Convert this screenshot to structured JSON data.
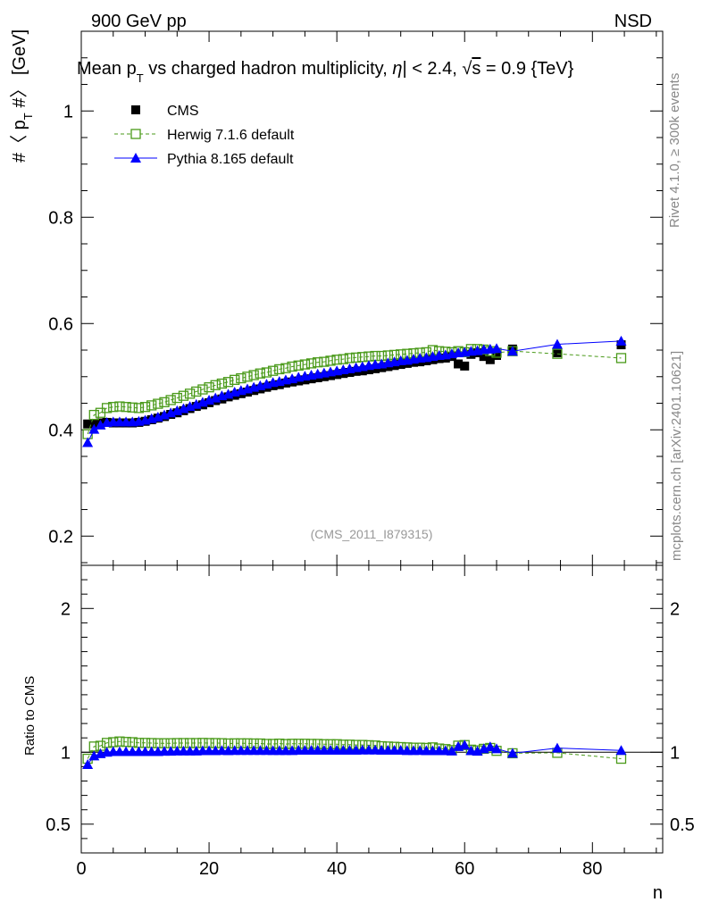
{
  "header": {
    "left": "900 GeV pp",
    "right": "NSD"
  },
  "side_text": {
    "rivet": "Rivet 4.1.0, ≥ 300k events",
    "mcplots": "mcplots.cern.ch [arXiv:2401.10621]"
  },
  "chart_data": [
    {
      "type": "scatter",
      "title": "Mean p_T vs charged hadron multiplicity, |η| < 2.4, √s = 0.9 {TeV}",
      "title_parts": {
        "a": "Mean p",
        "sub": "T",
        "b": " vs charged hadron multiplicity, ",
        "eta_bar": "|",
        "c": " < 2.4, ",
        "s": "s",
        "d": " = 0.9 {TeV}"
      },
      "ylabel_parts": {
        "a": "#〈 p",
        "sub": "T",
        "b": " #〉 [GeV]"
      },
      "xlim": [
        0,
        91
      ],
      "ylim": [
        0.145,
        1.15
      ],
      "yticks": [
        0.2,
        0.4,
        0.6,
        0.8,
        1
      ],
      "ytick_labels": [
        "0.2",
        "0.4",
        "0.6",
        "0.8",
        "1"
      ],
      "annotation": "(CMS_2011_I879315)",
      "legend": [
        {
          "name": "CMS",
          "marker": "filled-square",
          "color": "#000000"
        },
        {
          "name": "Herwig 7.1.6 default",
          "marker": "open-square",
          "color": "#4a9a1a",
          "line": "dashed"
        },
        {
          "name": "Pythia 8.165 default",
          "marker": "filled-triangle",
          "color": "#0000ff",
          "line": "solid"
        }
      ],
      "series": [
        {
          "name": "CMS",
          "x": [
            1,
            2,
            3,
            4,
            5,
            6,
            7,
            8,
            9,
            10,
            11,
            12,
            13,
            14,
            15,
            16,
            17,
            18,
            19,
            20,
            21,
            22,
            23,
            24,
            25,
            26,
            27,
            28,
            29,
            30,
            31,
            32,
            33,
            34,
            35,
            36,
            37,
            38,
            39,
            40,
            41,
            42,
            43,
            44,
            45,
            46,
            47,
            48,
            49,
            50,
            51,
            52,
            53,
            54,
            55,
            56,
            57,
            58,
            59,
            60,
            61,
            62,
            63,
            64,
            65,
            67.5,
            74.5,
            84.5
          ],
          "values": [
            0.411,
            0.412,
            0.413,
            0.414,
            0.413,
            0.413,
            0.413,
            0.413,
            0.414,
            0.416,
            0.419,
            0.422,
            0.425,
            0.429,
            0.432,
            0.436,
            0.44,
            0.444,
            0.447,
            0.451,
            0.455,
            0.458,
            0.462,
            0.465,
            0.468,
            0.471,
            0.474,
            0.477,
            0.48,
            0.483,
            0.485,
            0.488,
            0.49,
            0.492,
            0.494,
            0.496,
            0.498,
            0.5,
            0.502,
            0.504,
            0.506,
            0.508,
            0.51,
            0.511,
            0.513,
            0.515,
            0.517,
            0.519,
            0.521,
            0.523,
            0.525,
            0.527,
            0.528,
            0.53,
            0.532,
            0.534,
            0.535,
            0.538,
            0.524,
            0.52,
            0.542,
            0.545,
            0.538,
            0.532,
            0.54,
            0.552,
            0.545,
            0.56
          ]
        },
        {
          "name": "Herwig 7.1.6 default",
          "x": [
            1,
            2,
            3,
            4,
            5,
            6,
            7,
            8,
            9,
            10,
            11,
            12,
            13,
            14,
            15,
            16,
            17,
            18,
            19,
            20,
            21,
            22,
            23,
            24,
            25,
            26,
            27,
            28,
            29,
            30,
            31,
            32,
            33,
            34,
            35,
            36,
            37,
            38,
            39,
            40,
            41,
            42,
            43,
            44,
            45,
            46,
            47,
            48,
            49,
            50,
            51,
            52,
            53,
            54,
            55,
            56,
            57,
            58,
            59,
            60,
            61,
            62,
            63,
            64,
            65,
            67.5,
            74.5,
            84.5
          ],
          "values": [
            0.392,
            0.428,
            0.432,
            0.441,
            0.443,
            0.444,
            0.443,
            0.442,
            0.441,
            0.443,
            0.446,
            0.449,
            0.452,
            0.456,
            0.46,
            0.464,
            0.468,
            0.472,
            0.476,
            0.48,
            0.484,
            0.487,
            0.49,
            0.494,
            0.497,
            0.5,
            0.503,
            0.506,
            0.508,
            0.511,
            0.514,
            0.516,
            0.519,
            0.521,
            0.523,
            0.525,
            0.527,
            0.528,
            0.53,
            0.532,
            0.533,
            0.535,
            0.536,
            0.537,
            0.538,
            0.539,
            0.539,
            0.54,
            0.541,
            0.542,
            0.543,
            0.544,
            0.545,
            0.546,
            0.55,
            0.548,
            0.547,
            0.546,
            0.548,
            0.546,
            0.552,
            0.552,
            0.551,
            0.548,
            0.545,
            0.548,
            0.543,
            0.535
          ]
        },
        {
          "name": "Pythia 8.165 default",
          "x": [
            1,
            2,
            3,
            4,
            5,
            6,
            7,
            8,
            9,
            10,
            11,
            12,
            13,
            14,
            15,
            16,
            17,
            18,
            19,
            20,
            21,
            22,
            23,
            24,
            25,
            26,
            27,
            28,
            29,
            30,
            31,
            32,
            33,
            34,
            35,
            36,
            37,
            38,
            39,
            40,
            41,
            42,
            43,
            44,
            45,
            46,
            47,
            48,
            49,
            50,
            51,
            52,
            53,
            54,
            55,
            56,
            57,
            58,
            59,
            60,
            61,
            62,
            63,
            64,
            65,
            67.5,
            74.5,
            84.5
          ],
          "values": [
            0.376,
            0.401,
            0.409,
            0.414,
            0.415,
            0.415,
            0.415,
            0.415,
            0.416,
            0.418,
            0.421,
            0.424,
            0.428,
            0.432,
            0.436,
            0.44,
            0.444,
            0.448,
            0.452,
            0.456,
            0.46,
            0.464,
            0.467,
            0.471,
            0.474,
            0.477,
            0.48,
            0.483,
            0.486,
            0.489,
            0.491,
            0.494,
            0.496,
            0.499,
            0.501,
            0.503,
            0.505,
            0.507,
            0.509,
            0.511,
            0.513,
            0.515,
            0.517,
            0.519,
            0.521,
            0.523,
            0.524,
            0.526,
            0.528,
            0.53,
            0.531,
            0.533,
            0.535,
            0.536,
            0.538,
            0.54,
            0.541,
            0.543,
            0.545,
            0.546,
            0.548,
            0.549,
            0.551,
            0.552,
            0.553,
            0.548,
            0.561,
            0.567
          ]
        }
      ]
    },
    {
      "type": "scatter",
      "title": "",
      "xlabel": "n",
      "ylabel": "Ratio to CMS",
      "xlim": [
        0,
        91
      ],
      "ylim": [
        0.3,
        2.3
      ],
      "xticks": [
        0,
        20,
        40,
        60,
        80
      ],
      "xtick_labels": [
        "0",
        "20",
        "40",
        "60",
        "80"
      ],
      "yticks": [
        0.5,
        1,
        2
      ],
      "ytick_labels": [
        "0.5",
        "1",
        "2"
      ],
      "reference_line": 1,
      "series": [
        {
          "name": "Herwig 7.1.6 default",
          "x": [
            1,
            2,
            3,
            4,
            5,
            6,
            7,
            8,
            9,
            10,
            11,
            12,
            13,
            14,
            15,
            16,
            17,
            18,
            19,
            20,
            21,
            22,
            23,
            24,
            25,
            26,
            27,
            28,
            29,
            30,
            31,
            32,
            33,
            34,
            35,
            36,
            37,
            38,
            39,
            40,
            41,
            42,
            43,
            44,
            45,
            46,
            47,
            48,
            49,
            50,
            51,
            52,
            53,
            54,
            55,
            56,
            57,
            58,
            59,
            60,
            61,
            62,
            63,
            64,
            65,
            67.5,
            74.5,
            84.5
          ],
          "values": [
            0.955,
            1.04,
            1.045,
            1.065,
            1.07,
            1.075,
            1.072,
            1.07,
            1.065,
            1.065,
            1.064,
            1.063,
            1.063,
            1.063,
            1.064,
            1.064,
            1.064,
            1.064,
            1.065,
            1.064,
            1.064,
            1.063,
            1.061,
            1.062,
            1.062,
            1.062,
            1.061,
            1.061,
            1.058,
            1.058,
            1.06,
            1.057,
            1.059,
            1.059,
            1.059,
            1.058,
            1.058,
            1.056,
            1.056,
            1.056,
            1.053,
            1.053,
            1.051,
            1.051,
            1.049,
            1.047,
            1.042,
            1.04,
            1.038,
            1.036,
            1.034,
            1.032,
            1.032,
            1.03,
            1.034,
            1.026,
            1.022,
            1.015,
            1.046,
            1.05,
            1.018,
            1.013,
            1.024,
            1.03,
            1.01,
            0.993,
            0.996,
            0.955
          ]
        },
        {
          "name": "Pythia 8.165 default",
          "x": [
            1,
            2,
            3,
            4,
            5,
            6,
            7,
            8,
            9,
            10,
            11,
            12,
            13,
            14,
            15,
            16,
            17,
            18,
            19,
            20,
            21,
            22,
            23,
            24,
            25,
            26,
            27,
            28,
            29,
            30,
            31,
            32,
            33,
            34,
            35,
            36,
            37,
            38,
            39,
            40,
            41,
            42,
            43,
            44,
            45,
            46,
            47,
            48,
            49,
            50,
            51,
            52,
            53,
            54,
            55,
            56,
            57,
            58,
            59,
            60,
            61,
            62,
            63,
            64,
            65,
            67.5,
            74.5,
            84.5
          ],
          "values": [
            0.915,
            0.975,
            0.99,
            1.0,
            1.005,
            1.005,
            1.005,
            1.005,
            1.005,
            1.005,
            1.005,
            1.005,
            1.007,
            1.007,
            1.009,
            1.009,
            1.009,
            1.009,
            1.011,
            1.011,
            1.011,
            1.013,
            1.011,
            1.013,
            1.013,
            1.013,
            1.013,
            1.013,
            1.013,
            1.012,
            1.012,
            1.012,
            1.012,
            1.014,
            1.014,
            1.014,
            1.014,
            1.014,
            1.014,
            1.014,
            1.014,
            1.014,
            1.014,
            1.016,
            1.016,
            1.016,
            1.014,
            1.014,
            1.014,
            1.014,
            1.012,
            1.012,
            1.013,
            1.011,
            1.011,
            1.011,
            1.011,
            1.009,
            1.04,
            1.05,
            1.011,
            1.007,
            1.024,
            1.038,
            1.024,
            0.993,
            1.029,
            1.013
          ]
        }
      ]
    }
  ]
}
